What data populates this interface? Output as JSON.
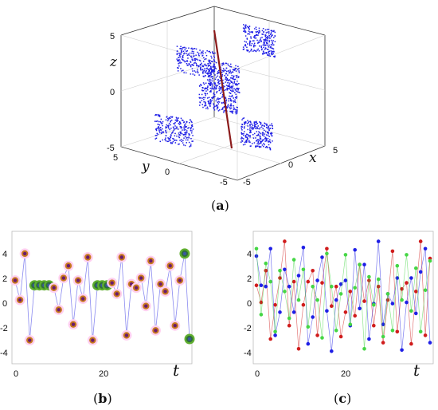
{
  "colors": {
    "cloud": "#1f1fe6",
    "axis_line": "#8b1a1a",
    "circle_outer": "#ffd0f0",
    "circle_ring": "#c77a1e",
    "circle_fill": "#6a1b6f",
    "green_outer": "#5fae2e",
    "green_ring": "#2f6e3b",
    "green_fill": "#3a57a0",
    "line_b": "#8a8af0",
    "series_c": [
      "#d01c1c",
      "#1f1fe6",
      "#45d645"
    ]
  },
  "panel_labels": {
    "a": "a",
    "b": "b",
    "c": "c"
  },
  "chart_data": [
    {
      "type": "scatter",
      "panel": "a",
      "projection": "3d",
      "xlabel": "x",
      "ylabel": "y",
      "zlabel": "z",
      "x_ticks": [
        "5",
        "0",
        "-5"
      ],
      "y_ticks": [
        "5",
        "0",
        "-5"
      ],
      "z_ticks": [
        "5",
        "0",
        "-5"
      ],
      "xlim": [
        -5,
        5
      ],
      "ylim": [
        -5,
        5
      ],
      "zlim": [
        -5,
        5
      ],
      "clusters": [
        {
          "x": -3.5,
          "y": 0,
          "z": 3.6
        },
        {
          "x": 2.7,
          "y": 0,
          "z": 3.6
        },
        {
          "x": 0,
          "y": 0,
          "z": 1.5
        },
        {
          "x": 0.5,
          "y": 0,
          "z": -0.3
        },
        {
          "x": -1.2,
          "y": 2,
          "z": -3.5
        },
        {
          "x": 2.8,
          "y": -2,
          "z": -3
        }
      ],
      "invariant_line": {
        "from": [
          0,
          0,
          5
        ],
        "to": [
          0,
          0,
          -5
        ]
      }
    },
    {
      "type": "line",
      "panel": "b",
      "xlabel": "t",
      "xlim": [
        0,
        36
      ],
      "ylim": [
        -5,
        5
      ],
      "x_ticks": [
        "0",
        "20"
      ],
      "y_ticks": [
        "4",
        "2",
        "0",
        "-2",
        "-4"
      ],
      "series": [
        {
          "x": [
            0,
            1,
            2,
            3,
            4,
            5,
            6,
            7,
            8,
            9,
            10,
            11,
            12,
            13,
            14,
            15,
            16,
            17,
            18,
            19,
            20,
            21,
            22,
            23,
            24,
            25,
            26,
            27,
            28,
            29,
            30,
            31,
            32,
            33,
            34,
            35,
            36
          ],
          "values": [
            1.4,
            -0.2,
            3.6,
            -3.5,
            1,
            1,
            1,
            1,
            0.8,
            -1,
            1.6,
            2.6,
            -2.2,
            1.4,
            -0.1,
            3.3,
            -3.5,
            1,
            1,
            1,
            1.2,
            0.3,
            3.3,
            -3.1,
            1.1,
            0.8,
            1.6,
            -0.7,
            3,
            -2.7,
            1.1,
            0.5,
            2.6,
            -2.3,
            1.4,
            3.6,
            -3.4
          ]
        }
      ],
      "fixed_points": [
        4,
        5,
        6,
        7,
        17,
        18,
        19,
        35,
        36
      ]
    },
    {
      "type": "line",
      "panel": "c",
      "xlabel": "t",
      "xlim": [
        0,
        37
      ],
      "ylim": [
        -5,
        5
      ],
      "x_ticks": [
        "0",
        "20"
      ],
      "y_ticks": [
        "4",
        "2",
        "0",
        "-2",
        "-4"
      ],
      "series": [
        {
          "values": [
            1,
            -0.4,
            2.2,
            -3.4,
            -0.6,
            1.6,
            4.6,
            -2.3,
            1.3,
            -4.2,
            -0.6,
            1.3,
            2.2,
            -3.1,
            1.2,
            4,
            -0.7,
            0.9,
            -3.2,
            -1.2,
            0.5,
            -1.5,
            2.7,
            -0.3,
            1.4,
            -2.3,
            0.9,
            -3.7,
            -0.2,
            3.8,
            -2.8,
            0.7,
            1.2,
            -3.8,
            0.5,
            4.6,
            -3.1,
            3.2
          ]
        },
        {
          "values": [
            3.4,
            1,
            0.9,
            4,
            -3.1,
            -1.2,
            2.3,
            0.9,
            -1.2,
            1.8,
            4.1,
            -3.8,
            -1.6,
            1.4,
            3.3,
            -1.1,
            -4.4,
            -0.2,
            1.1,
            1.4,
            -2.3,
            3.9,
            -0.9,
            2.7,
            -3.4,
            -0.5,
            4.6,
            -2.2,
            0.3,
            -0.5,
            1.6,
            -4.3,
            -0.4,
            1.6,
            -1.3,
            2.1,
            4,
            -3.7
          ]
        },
        {
          "values": [
            4,
            -1.4,
            2.8,
            1.3,
            -2.8,
            2.2,
            0.5,
            -1.7,
            3.1,
            -0.2,
            2.3,
            -2.4,
            0.9,
            -0.2,
            -3.3,
            3.6,
            0.9,
            -2.7,
            0.3,
            3.5,
            -2.2,
            0.8,
            2.7,
            -4.2,
            1.7,
            -0.6,
            1.5,
            -3.2,
            0.3,
            -2.7,
            2.6,
            -0.2,
            3.5,
            -1.1,
            2.4,
            -2.8,
            0.6,
            3
          ]
        }
      ]
    }
  ]
}
